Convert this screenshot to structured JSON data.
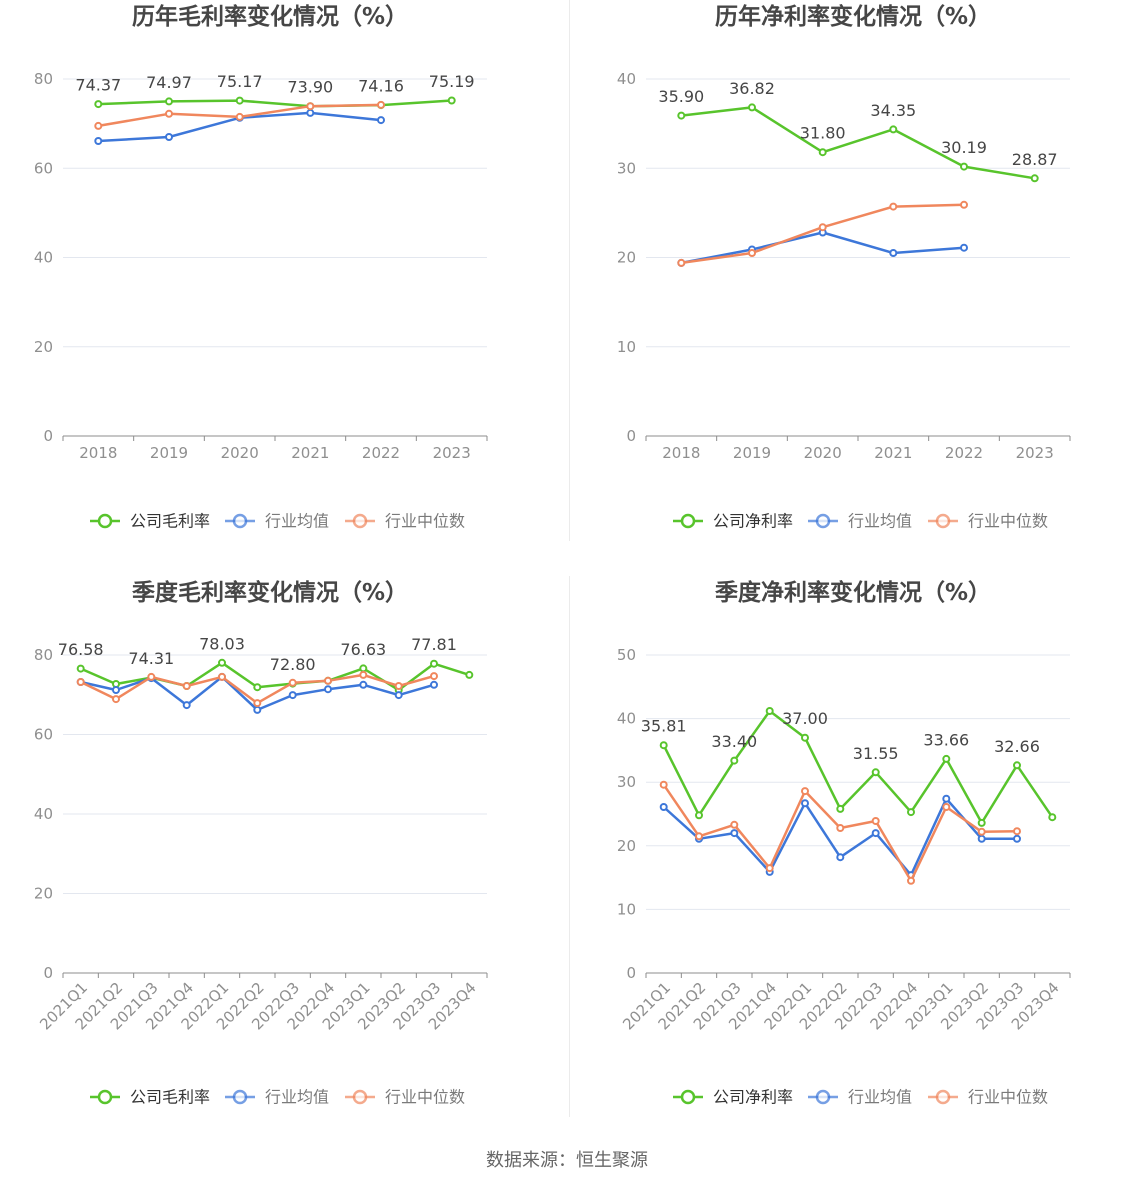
{
  "footer": {
    "source": "数据来源：恒生聚源"
  },
  "chart_data": [
    {
      "type": "line",
      "title": "历年毛利率变化情况（%）",
      "categories": [
        "2018",
        "2019",
        "2020",
        "2021",
        "2022",
        "2023"
      ],
      "ylim": [
        0,
        80
      ],
      "yticks": [
        0,
        20,
        40,
        60,
        80
      ],
      "grid": true,
      "legend": "bottom",
      "series": [
        {
          "name": "公司毛利率",
          "color": "#58c42c",
          "values": [
            74.37,
            74.97,
            75.17,
            73.9,
            74.16,
            75.19
          ],
          "labels": [
            "74.37",
            "74.97",
            "75.17",
            "73.90",
            "74.16",
            "75.19"
          ]
        },
        {
          "name": "行业均值",
          "color": "#3d77d9",
          "values": [
            66.1,
            67.0,
            71.3,
            72.4,
            70.8,
            null
          ]
        },
        {
          "name": "行业中位数",
          "color": "#f0875d",
          "values": [
            69.5,
            72.2,
            71.5,
            73.9,
            74.2,
            null
          ]
        }
      ]
    },
    {
      "type": "line",
      "title": "历年净利率变化情况（%）",
      "categories": [
        "2018",
        "2019",
        "2020",
        "2021",
        "2022",
        "2023"
      ],
      "ylim": [
        0,
        40
      ],
      "yticks": [
        0,
        10,
        20,
        30,
        40
      ],
      "grid": true,
      "legend": "bottom",
      "series": [
        {
          "name": "公司净利率",
          "color": "#58c42c",
          "values": [
            35.9,
            36.82,
            31.8,
            34.35,
            30.19,
            28.87
          ],
          "labels": [
            "35.90",
            "36.82",
            "31.80",
            "34.35",
            "30.19",
            "28.87"
          ]
        },
        {
          "name": "行业均值",
          "color": "#3d77d9",
          "values": [
            19.4,
            20.9,
            22.8,
            20.5,
            21.1,
            null
          ]
        },
        {
          "name": "行业中位数",
          "color": "#f0875d",
          "values": [
            19.4,
            20.5,
            23.4,
            25.7,
            25.9,
            null
          ]
        }
      ]
    },
    {
      "type": "line",
      "title": "季度毛利率变化情况（%）",
      "categories": [
        "2021Q1",
        "2021Q2",
        "2021Q3",
        "2021Q4",
        "2022Q1",
        "2022Q2",
        "2022Q3",
        "2022Q4",
        "2023Q1",
        "2023Q2",
        "2023Q3",
        "2023Q4"
      ],
      "ylim": [
        0,
        80
      ],
      "yticks": [
        0,
        20,
        40,
        60,
        80
      ],
      "grid": true,
      "legend": "bottom",
      "series": [
        {
          "name": "公司毛利率",
          "color": "#58c42c",
          "values": [
            76.58,
            72.7,
            74.31,
            72.2,
            78.03,
            71.9,
            72.8,
            73.5,
            76.63,
            71.2,
            77.81,
            75.0
          ],
          "labels": [
            "76.58",
            null,
            "74.31",
            null,
            "78.03",
            null,
            "72.80",
            null,
            "76.63",
            null,
            "77.81",
            null
          ]
        },
        {
          "name": "行业均值",
          "color": "#3d77d9",
          "values": [
            73.2,
            71.2,
            74.2,
            67.4,
            74.5,
            66.2,
            69.9,
            71.4,
            72.5,
            69.9,
            72.5,
            null
          ]
        },
        {
          "name": "行业中位数",
          "color": "#f0875d",
          "values": [
            73.2,
            68.9,
            74.5,
            72.2,
            74.5,
            67.9,
            73.0,
            73.5,
            75.0,
            72.2,
            74.7,
            null
          ]
        }
      ]
    },
    {
      "type": "line",
      "title": "季度净利率变化情况（%）",
      "categories": [
        "2021Q1",
        "2021Q2",
        "2021Q3",
        "2021Q4",
        "2022Q1",
        "2022Q2",
        "2022Q3",
        "2022Q4",
        "2023Q1",
        "2023Q2",
        "2023Q3",
        "2023Q4"
      ],
      "ylim": [
        0,
        50
      ],
      "yticks": [
        0,
        10,
        20,
        30,
        40,
        50
      ],
      "grid": true,
      "legend": "bottom",
      "series": [
        {
          "name": "公司净利率",
          "color": "#58c42c",
          "values": [
            35.81,
            24.8,
            33.4,
            41.2,
            37.0,
            25.8,
            31.55,
            25.3,
            33.66,
            23.6,
            32.66,
            24.5
          ],
          "labels": [
            "35.81",
            null,
            "33.40",
            null,
            "37.00",
            null,
            "31.55",
            null,
            "33.66",
            null,
            "32.66",
            null
          ]
        },
        {
          "name": "行业均值",
          "color": "#3d77d9",
          "values": [
            26.1,
            21.1,
            22.0,
            15.9,
            26.7,
            18.2,
            22.0,
            15.4,
            27.4,
            21.1,
            21.1,
            null
          ]
        },
        {
          "name": "行业中位数",
          "color": "#f0875d",
          "values": [
            29.6,
            21.5,
            23.3,
            16.5,
            28.6,
            22.8,
            23.9,
            14.5,
            26.1,
            22.2,
            22.3,
            null
          ]
        }
      ]
    }
  ]
}
